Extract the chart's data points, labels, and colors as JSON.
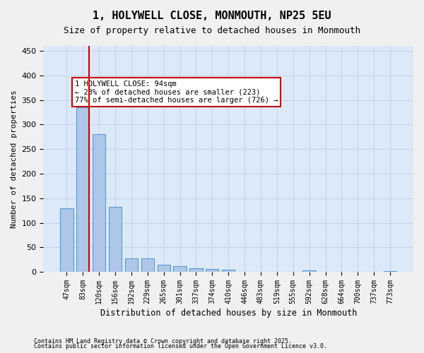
{
  "title_line1": "1, HOLYWELL CLOSE, MONMOUTH, NP25 5EU",
  "title_line2": "Size of property relative to detached houses in Monmouth",
  "xlabel": "Distribution of detached houses by size in Monmouth",
  "ylabel": "Number of detached properties",
  "categories": [
    "47sqm",
    "83sqm",
    "120sqm",
    "156sqm",
    "192sqm",
    "229sqm",
    "265sqm",
    "301sqm",
    "337sqm",
    "374sqm",
    "410sqm",
    "446sqm",
    "483sqm",
    "519sqm",
    "555sqm",
    "592sqm",
    "628sqm",
    "664sqm",
    "700sqm",
    "737sqm",
    "773sqm"
  ],
  "values": [
    130,
    335,
    280,
    133,
    27,
    27,
    15,
    11,
    8,
    6,
    5,
    0,
    0,
    0,
    0,
    3,
    0,
    0,
    0,
    0,
    2
  ],
  "bar_color": "#aec6e8",
  "bar_edge_color": "#5b9bd5",
  "grid_color": "#c8d4e8",
  "background_color": "#dce9f8",
  "vline_x": 1,
  "vline_color": "#cc0000",
  "annotation_text": "1 HOLYWELL CLOSE: 94sqm\n← 23% of detached houses are smaller (223)\n77% of semi-detached houses are larger (726) →",
  "annotation_box_color": "#ffffff",
  "annotation_box_edge_color": "#cc0000",
  "ylim": [
    0,
    460
  ],
  "yticks": [
    0,
    50,
    100,
    150,
    200,
    250,
    300,
    350,
    400,
    450
  ],
  "footnote1": "Contains HM Land Registry data © Crown copyright and database right 2025.",
  "footnote2": "Contains public sector information licensed under the Open Government Licence v3.0."
}
